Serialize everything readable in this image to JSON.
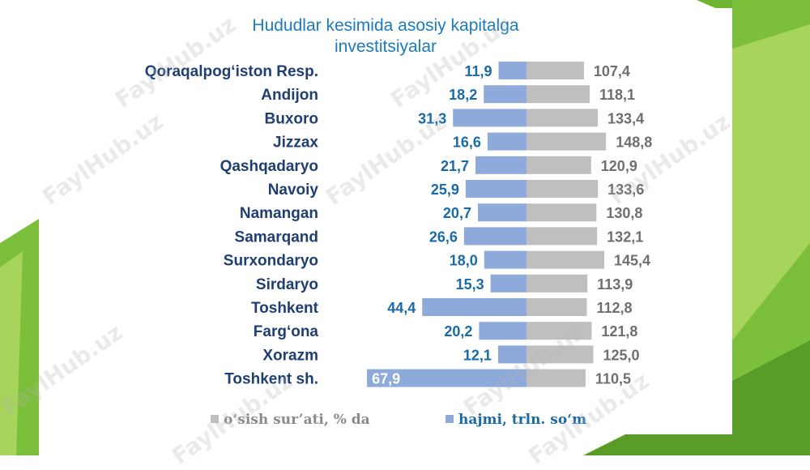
{
  "chart_data": {
    "type": "bar",
    "title_lines": [
      "Hududlar kesimida asosiy kapitalga",
      "investitsiyalar"
    ],
    "categories": [
      "Qoraqalpog‘iston Resp.",
      "Andijon",
      "Buxoro",
      "Jizzax",
      "Qashqadaryo",
      "Navoiy",
      "Namangan",
      "Samarqand",
      "Surxondaryo",
      "Sirdaryo",
      "Toshkent",
      "Farg‘ona",
      "Xorazm",
      "Toshkent sh."
    ],
    "series": [
      {
        "name": "hajmi, trln. so‘m",
        "values": [
          11.9,
          18.2,
          31.3,
          16.6,
          21.7,
          25.9,
          20.7,
          26.6,
          18.0,
          15.3,
          44.4,
          20.2,
          12.1,
          67.9
        ],
        "labels": [
          "11,9",
          "18,2",
          "31,3",
          "16,6",
          "21,7",
          "25,9",
          "20,7",
          "26,6",
          "18,0",
          "15,3",
          "44,4",
          "20,2",
          "12,1",
          "67,9"
        ],
        "color": "#8eaadb",
        "label_color": "#1b6aa8"
      },
      {
        "name": "o‘sish sur’ati, % da",
        "values": [
          107.4,
          118.1,
          133.4,
          148.8,
          120.9,
          133.6,
          130.8,
          132.1,
          145.4,
          113.9,
          112.8,
          121.8,
          125.0,
          110.5
        ],
        "labels": [
          "107,4",
          "118,1",
          "133,4",
          "148,8",
          "120,9",
          "133,6",
          "130,8",
          "132,1",
          "145,4",
          "113,9",
          "112,8",
          "121,8",
          "125,0",
          "110,5"
        ],
        "color": "#bfbfbf",
        "label_color": "#6f6f6f"
      }
    ],
    "legend": [
      "o‘sish sur’ati, % da",
      "hajmi, trln. so‘m"
    ],
    "legend_position": "bottom",
    "category_label_color": "#1f3f72",
    "grid": false
  },
  "watermark": "FaylHub.uz",
  "colors": {
    "green_dark": "#5a9c28",
    "green_mid": "#7cbf3a",
    "green_light": "#a6d45c"
  }
}
